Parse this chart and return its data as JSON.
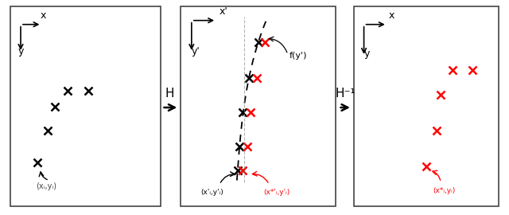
{
  "panel1": {
    "black_points": [
      [
        0.38,
        0.58
      ],
      [
        0.52,
        0.58
      ],
      [
        0.3,
        0.5
      ],
      [
        0.25,
        0.38
      ],
      [
        0.18,
        0.22
      ]
    ],
    "label_text": "(xᵢ,yᵢ)"
  },
  "panel2": {
    "black_points": [
      [
        0.5,
        0.82
      ],
      [
        0.44,
        0.64
      ],
      [
        0.4,
        0.47
      ],
      [
        0.38,
        0.3
      ],
      [
        0.37,
        0.18
      ]
    ],
    "red_points": [
      [
        0.54,
        0.82
      ],
      [
        0.49,
        0.64
      ],
      [
        0.45,
        0.47
      ],
      [
        0.43,
        0.3
      ],
      [
        0.4,
        0.18
      ]
    ],
    "curve_y": [
      0.14,
      0.18,
      0.3,
      0.47,
      0.64,
      0.82,
      0.93
    ],
    "curve_x": [
      0.36,
      0.37,
      0.38,
      0.4,
      0.44,
      0.5,
      0.55
    ],
    "label_black": "(x'ᵢ,y'ᵢ)",
    "label_red": "(x*'ᵢ,y'ᵢ)"
  },
  "panel3": {
    "red_points": [
      [
        0.68,
        0.68
      ],
      [
        0.82,
        0.68
      ],
      [
        0.6,
        0.56
      ],
      [
        0.57,
        0.38
      ],
      [
        0.5,
        0.2
      ]
    ],
    "label_red": "(x*ᵢ,yᵢ)"
  },
  "H_label": "H",
  "Hinv_label": "H⁻¹",
  "bg_color": "#ffffff"
}
